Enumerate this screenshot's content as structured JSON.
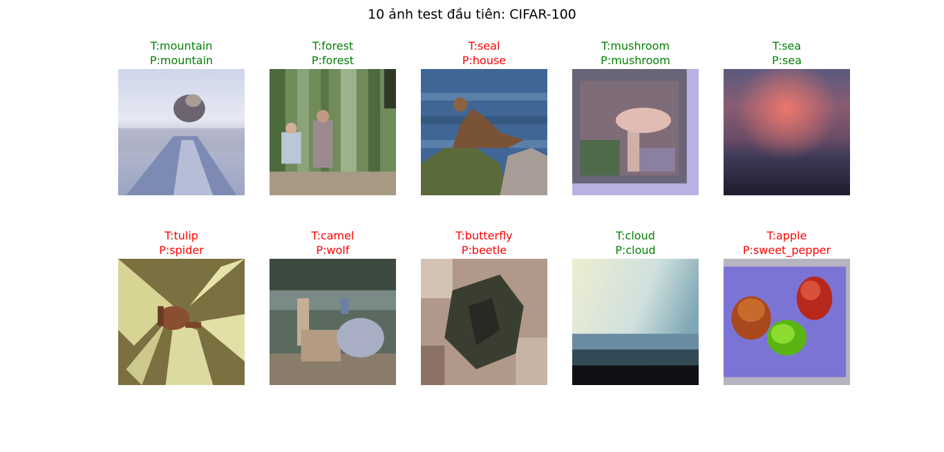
{
  "title": "10 ảnh test đầu tiên: CIFAR-100",
  "colors": {
    "correct": "#008000",
    "wrong": "#ff0000"
  },
  "samples": [
    {
      "true_label": "T:mountain",
      "pred_label": "P:mountain",
      "correct": true
    },
    {
      "true_label": "T:forest",
      "pred_label": "P:forest",
      "correct": true
    },
    {
      "true_label": "T:seal",
      "pred_label": "P:house",
      "correct": false
    },
    {
      "true_label": "T:mushroom",
      "pred_label": "P:mushroom",
      "correct": true
    },
    {
      "true_label": "T:sea",
      "pred_label": "P:sea",
      "correct": true
    },
    {
      "true_label": "T:tulip",
      "pred_label": "P:spider",
      "correct": false
    },
    {
      "true_label": "T:camel",
      "pred_label": "P:wolf",
      "correct": false
    },
    {
      "true_label": "T:butterfly",
      "pred_label": "P:beetle",
      "correct": false
    },
    {
      "true_label": "T:cloud",
      "pred_label": "P:cloud",
      "correct": true
    },
    {
      "true_label": "T:apple",
      "pred_label": "P:sweet_pepper",
      "correct": false
    }
  ]
}
